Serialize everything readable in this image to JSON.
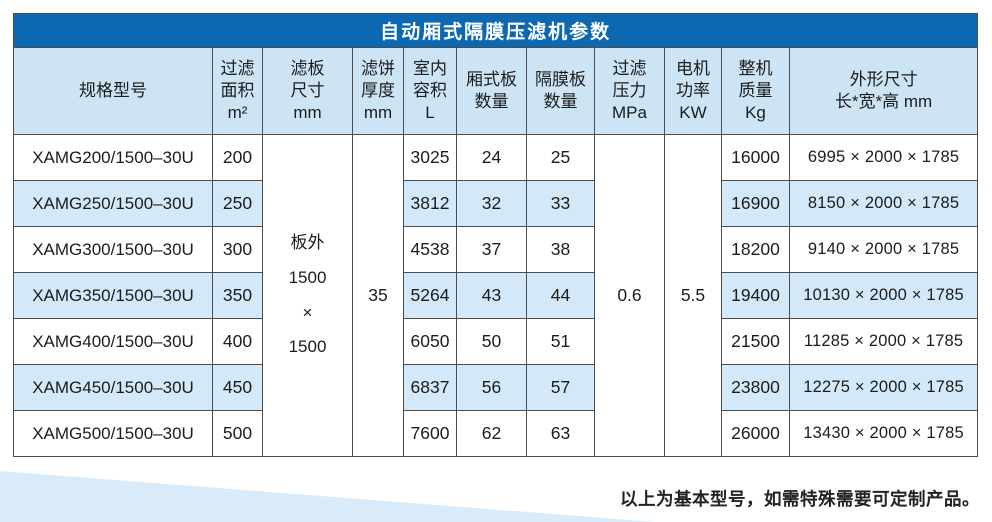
{
  "colors": {
    "title_bar": "#0c68b0",
    "header_bg": "#cde4f4",
    "stripe_bg": "#d3e8f8",
    "border": "#4d4d4d",
    "wedge": "#d9eaf8",
    "text": "#1c1c1c"
  },
  "page": {
    "footer_note": "以上为基本型号，如需特殊需要可定制产品。"
  },
  "table": {
    "title": "自动厢式隔膜压滤机参数",
    "columns": [
      "规格型号",
      "过滤\n面积\nm²",
      "滤板\n尺寸\nmm",
      "滤饼\n厚度\nmm",
      "室内\n容积\nL",
      "厢式板\n数量",
      "隔膜板\n数量",
      "过滤\n压力\nMPa",
      "电机\n功率\nKW",
      "整机\n质量\nKg",
      "外形尺寸\n长*宽*高 mm"
    ],
    "merged": {
      "plate_size": "板外\n1500\n×\n1500",
      "cake_thickness": "35",
      "pressure": "0.6",
      "motor_power": "5.5"
    },
    "rows": [
      {
        "model": "XAMG200/1500–30U",
        "area": "200",
        "volume": "3025",
        "chamber": "24",
        "diaphragm": "25",
        "weight": "16000",
        "dims": "6995 × 2000 × 1785"
      },
      {
        "model": "XAMG250/1500–30U",
        "area": "250",
        "volume": "3812",
        "chamber": "32",
        "diaphragm": "33",
        "weight": "16900",
        "dims": "8150 × 2000 × 1785"
      },
      {
        "model": "XAMG300/1500–30U",
        "area": "300",
        "volume": "4538",
        "chamber": "37",
        "diaphragm": "38",
        "weight": "18200",
        "dims": "9140 × 2000 × 1785"
      },
      {
        "model": "XAMG350/1500–30U",
        "area": "350",
        "volume": "5264",
        "chamber": "43",
        "diaphragm": "44",
        "weight": "19400",
        "dims": "10130 × 2000 × 1785"
      },
      {
        "model": "XAMG400/1500–30U",
        "area": "400",
        "volume": "6050",
        "chamber": "50",
        "diaphragm": "51",
        "weight": "21500",
        "dims": "11285 × 2000 × 1785"
      },
      {
        "model": "XAMG450/1500–30U",
        "area": "450",
        "volume": "6837",
        "chamber": "56",
        "diaphragm": "57",
        "weight": "23800",
        "dims": "12275 × 2000 × 1785"
      },
      {
        "model": "XAMG500/1500–30U",
        "area": "500",
        "volume": "7600",
        "chamber": "62",
        "diaphragm": "63",
        "weight": "26000",
        "dims": "13430 × 2000 × 1785"
      }
    ]
  }
}
